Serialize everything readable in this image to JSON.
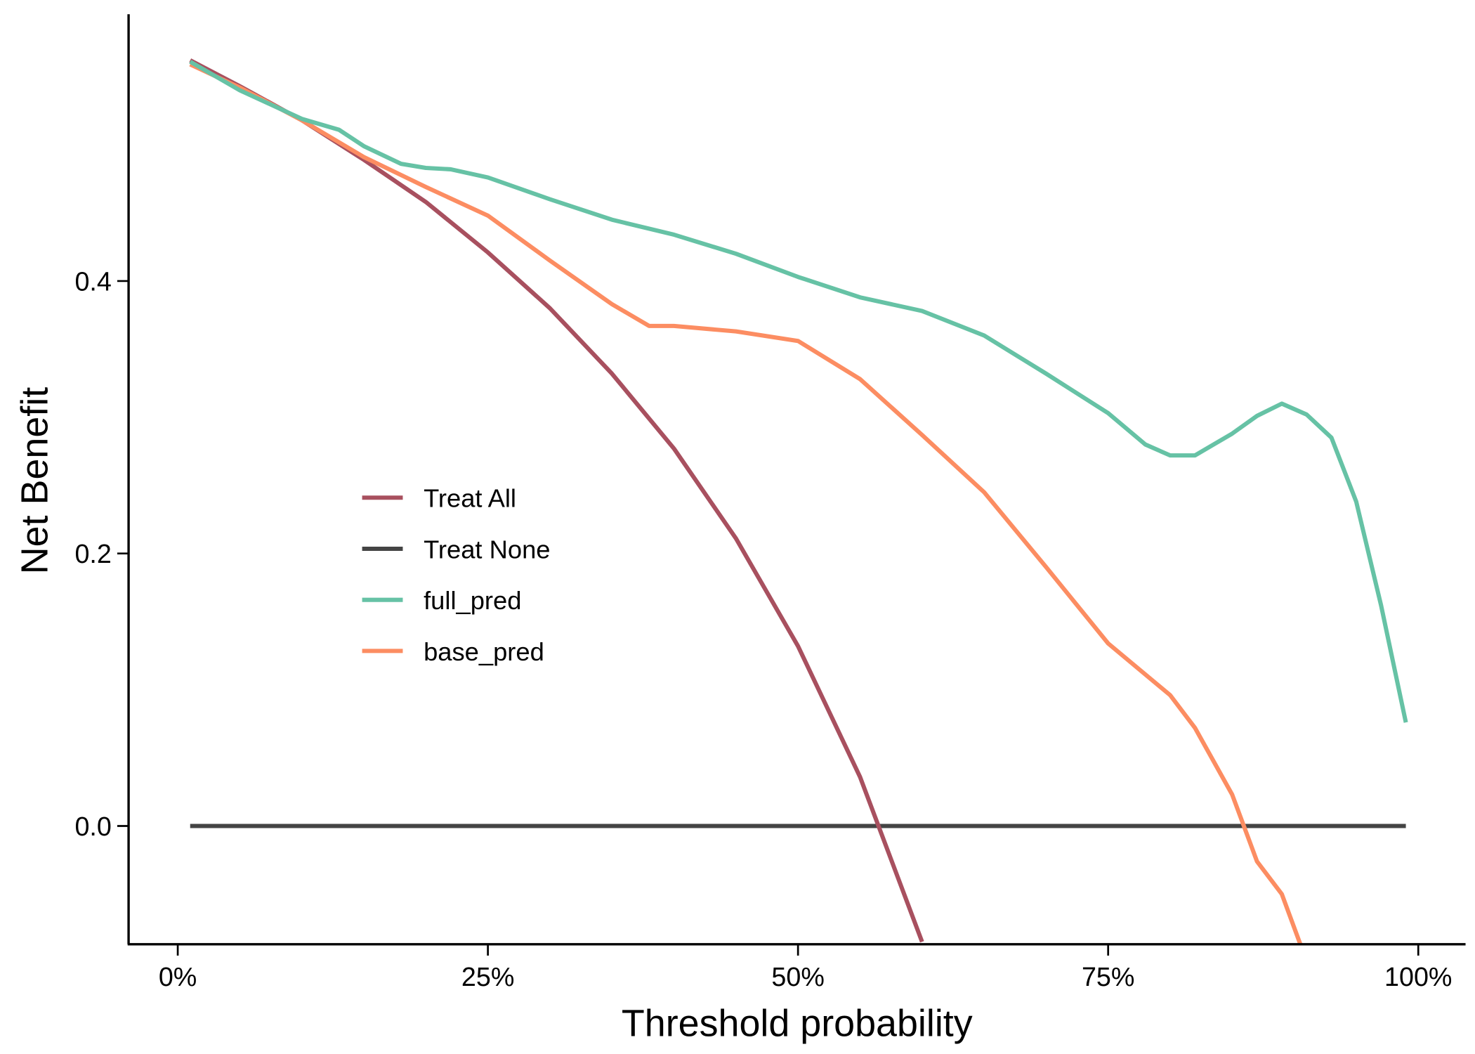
{
  "chart_data": {
    "type": "line",
    "xlabel": "Threshold probability",
    "ylabel": "Net Benefit",
    "xlim": [
      -0.04,
      1.038
    ],
    "ylim": [
      -0.087,
      0.596
    ],
    "x_ticks": [
      0,
      0.25,
      0.5,
      0.75,
      1
    ],
    "x_tick_labels": [
      "0%",
      "25%",
      "50%",
      "75%",
      "100%"
    ],
    "y_ticks": [
      0,
      0.2,
      0.4
    ],
    "y_tick_labels": [
      "0.0",
      "0.2",
      "0.4"
    ],
    "grid": false,
    "legend_position": "center-left",
    "series": [
      {
        "name": "Treat All",
        "color": "#A8505F",
        "x": [
          0.01,
          0.05,
          0.1,
          0.15,
          0.2,
          0.25,
          0.3,
          0.35,
          0.4,
          0.45,
          0.5,
          0.55,
          0.6
        ],
        "y": [
          0.562,
          0.543,
          0.518,
          0.489,
          0.458,
          0.421,
          0.38,
          0.332,
          0.277,
          0.211,
          0.132,
          0.036,
          -0.085
        ]
      },
      {
        "name": "Treat None",
        "color": "#444444",
        "x": [
          0.01,
          0.99
        ],
        "y": [
          0,
          0
        ]
      },
      {
        "name": "full_pred",
        "color": "#66C2A5",
        "x": [
          0.01,
          0.05,
          0.1,
          0.13,
          0.15,
          0.18,
          0.2,
          0.22,
          0.25,
          0.3,
          0.35,
          0.4,
          0.45,
          0.5,
          0.55,
          0.6,
          0.65,
          0.7,
          0.75,
          0.78,
          0.8,
          0.82,
          0.85,
          0.87,
          0.89,
          0.91,
          0.93,
          0.95,
          0.97,
          0.99
        ],
        "y": [
          0.561,
          0.54,
          0.519,
          0.511,
          0.499,
          0.486,
          0.483,
          0.482,
          0.476,
          0.46,
          0.445,
          0.434,
          0.42,
          0.403,
          0.388,
          0.378,
          0.36,
          0.332,
          0.303,
          0.28,
          0.272,
          0.272,
          0.288,
          0.301,
          0.31,
          0.302,
          0.285,
          0.238,
          0.162,
          0.076
        ]
      },
      {
        "name": "base_pred",
        "color": "#FC8D62",
        "x": [
          0.01,
          0.05,
          0.1,
          0.15,
          0.2,
          0.25,
          0.3,
          0.35,
          0.38,
          0.4,
          0.45,
          0.5,
          0.55,
          0.6,
          0.65,
          0.7,
          0.75,
          0.8,
          0.82,
          0.85,
          0.87,
          0.89,
          0.905
        ],
        "y": [
          0.559,
          0.542,
          0.518,
          0.491,
          0.469,
          0.448,
          0.415,
          0.383,
          0.367,
          0.367,
          0.363,
          0.356,
          0.328,
          0.287,
          0.245,
          0.19,
          0.134,
          0.096,
          0.072,
          0.023,
          -0.026,
          -0.05,
          -0.087
        ]
      }
    ]
  }
}
